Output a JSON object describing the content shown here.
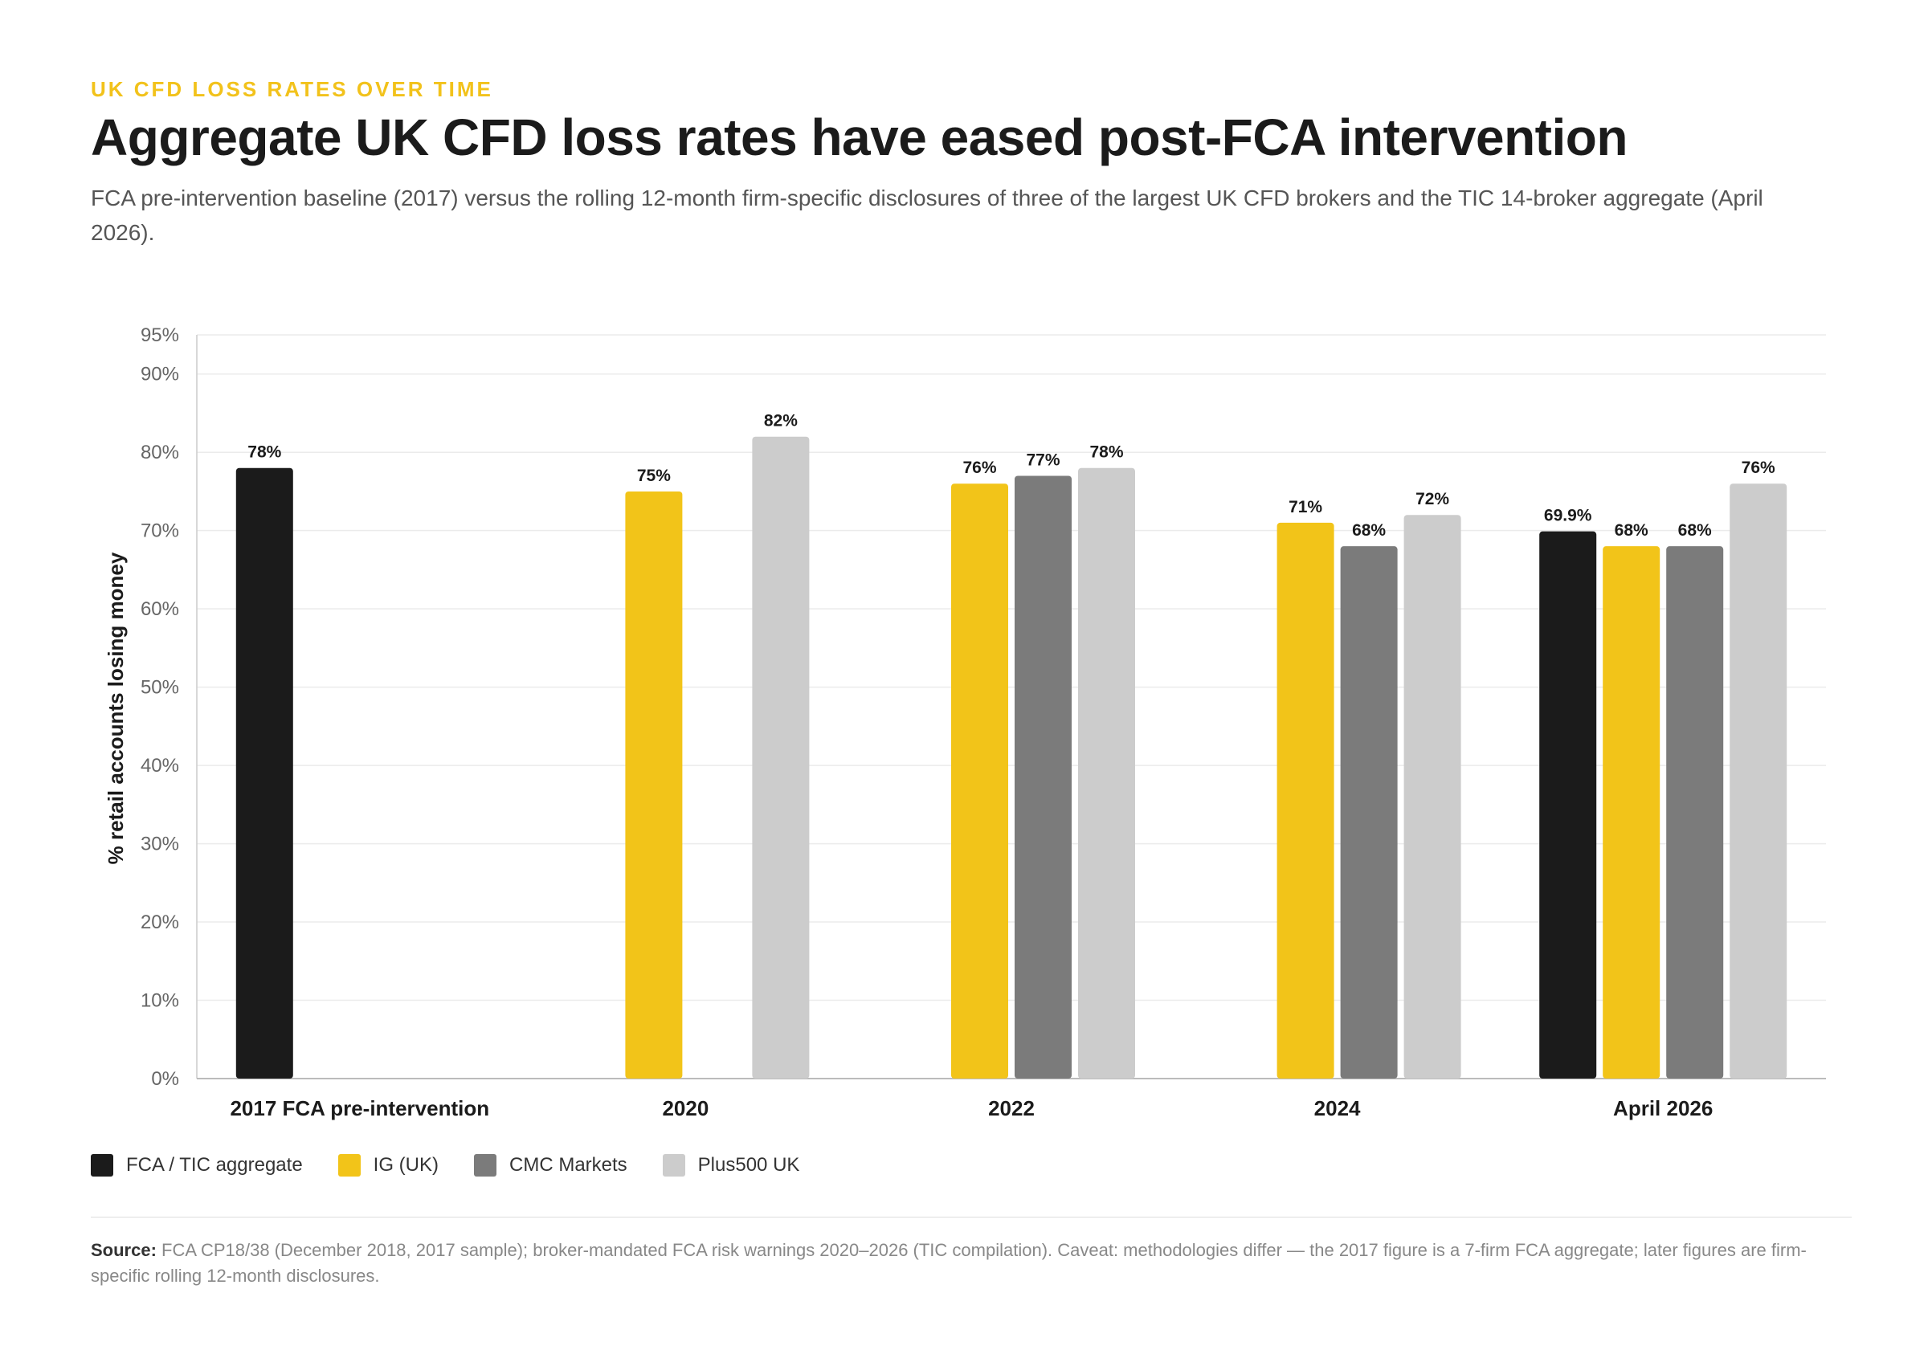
{
  "header": {
    "kicker": "UK CFD LOSS RATES OVER TIME",
    "title": "Aggregate UK CFD loss rates have eased post-FCA intervention",
    "subtitle": "FCA pre-intervention baseline (2017) versus the rolling 12-month firm-specific disclosures of three of the largest UK CFD brokers and the TIC 14-broker aggregate (April 2026)."
  },
  "chart_data": {
    "type": "bar",
    "title": "Aggregate UK CFD loss rates have eased post-FCA intervention",
    "xlabel": "",
    "ylabel": "% retail accounts losing money",
    "ylim": [
      0,
      95
    ],
    "yticks": [
      "0%",
      "10%",
      "20%",
      "30%",
      "40%",
      "50%",
      "60%",
      "70%",
      "80%",
      "90%",
      "95%"
    ],
    "ytick_values": [
      0,
      10,
      20,
      30,
      40,
      50,
      60,
      70,
      80,
      90,
      95
    ],
    "grid": true,
    "legend_position": "bottom-left",
    "categories": [
      "2017 FCA pre-intervention",
      "2020",
      "2022",
      "2024",
      "April 2026"
    ],
    "series": [
      {
        "name": "FCA / TIC aggregate",
        "color": "#1b1b1b",
        "values": [
          78,
          null,
          null,
          null,
          69.9
        ],
        "labels": [
          "78%",
          null,
          null,
          null,
          "69.9%"
        ]
      },
      {
        "name": "IG (UK)",
        "color": "#f2c419",
        "values": [
          null,
          75,
          76,
          71,
          68
        ],
        "labels": [
          null,
          "75%",
          "76%",
          "71%",
          "68%"
        ]
      },
      {
        "name": "CMC Markets",
        "color": "#7b7b7b",
        "values": [
          null,
          null,
          77,
          68,
          68
        ],
        "labels": [
          null,
          null,
          "77%",
          "68%",
          "68%"
        ]
      },
      {
        "name": "Plus500 UK",
        "color": "#cccccc",
        "values": [
          null,
          82,
          78,
          72,
          76
        ],
        "labels": [
          null,
          "82%",
          "78%",
          "72%",
          "76%"
        ]
      }
    ]
  },
  "source": {
    "label": "Source:",
    "text": "FCA CP18/38 (December 2018, 2017 sample); broker-mandated FCA risk warnings 2020–2026 (TIC compilation). Caveat: methodologies differ — the 2017 figure is a 7-firm FCA aggregate; later figures are firm-specific rolling 12-month disclosures."
  }
}
